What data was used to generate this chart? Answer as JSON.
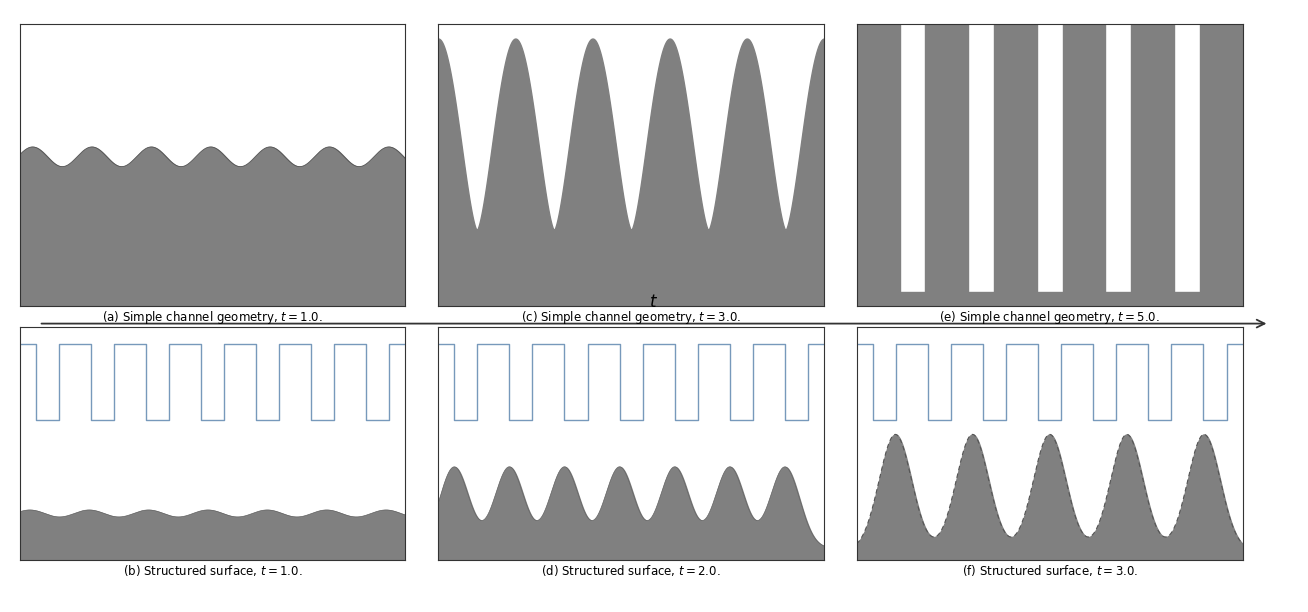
{
  "fig_width": 13.08,
  "fig_height": 6.12,
  "gray_fill": "#808080",
  "blue_color": "#7799bb",
  "background": "#ffffff",
  "border_color": "#333333",
  "captions": [
    "(a) Simple channel geometry, $t = 1.0$.",
    "(c) Simple channel geometry, $t = 3.0$.",
    "(e) Simple channel geometry, $t = 5.0$.",
    "(b) Structured surface, $t = 1.0$.",
    "(d) Structured surface, $t = 2.0$.",
    "(f) Structured surface, $t = 3.0$."
  ],
  "arrow_label": "t"
}
